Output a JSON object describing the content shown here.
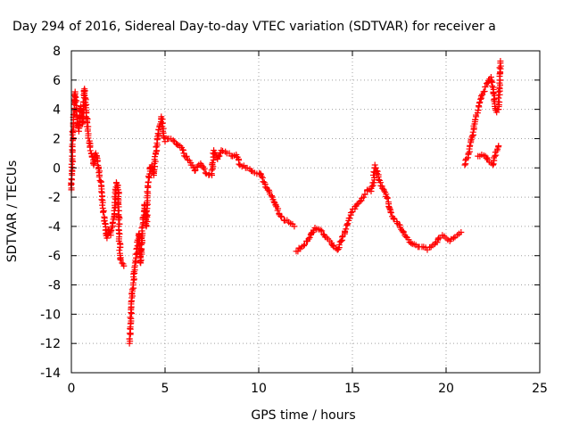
{
  "chart_data": {
    "type": "scatter",
    "title": "Day 294 of 2016, Sidereal Day-to-day VTEC variation (SDTVAR) for receiver a",
    "xlabel": "GPS time / hours",
    "ylabel": "SDTVAR / TECUs",
    "xlim": [
      0,
      25
    ],
    "ylim": [
      -14,
      8
    ],
    "xticks": [
      0,
      5,
      10,
      15,
      20,
      25
    ],
    "yticks": [
      -14,
      -12,
      -10,
      -8,
      -6,
      -4,
      -2,
      0,
      2,
      4,
      6,
      8
    ],
    "grid": true,
    "marker": "plus",
    "color": "#ff0000",
    "segments": [
      [
        [
          0.0,
          -1.5
        ],
        [
          0.05,
          0.5
        ],
        [
          0.1,
          3.0
        ],
        [
          0.2,
          5.2
        ],
        [
          0.3,
          3.5
        ],
        [
          0.4,
          2.5
        ],
        [
          0.5,
          4.2
        ],
        [
          0.6,
          3.0
        ],
        [
          0.7,
          5.4
        ],
        [
          0.8,
          3.8
        ],
        [
          0.9,
          2.2
        ],
        [
          1.0,
          1.5
        ],
        [
          1.1,
          0.8
        ],
        [
          1.2,
          0.2
        ],
        [
          1.3,
          1.0
        ],
        [
          1.4,
          0.5
        ],
        [
          1.5,
          -0.5
        ],
        [
          1.6,
          -1.2
        ],
        [
          1.7,
          -3.0
        ],
        [
          1.8,
          -3.8
        ],
        [
          1.9,
          -4.8
        ],
        [
          2.0,
          -4.2
        ],
        [
          2.1,
          -4.6
        ],
        [
          2.2,
          -3.8
        ],
        [
          2.3,
          -3.2
        ],
        [
          2.4,
          -1.0
        ],
        [
          2.5,
          -1.5
        ],
        [
          2.6,
          -6.2
        ],
        [
          2.7,
          -6.5
        ],
        [
          2.8,
          -6.7
        ]
      ],
      [
        [
          3.1,
          -12.0
        ],
        [
          3.2,
          -9.5
        ],
        [
          3.3,
          -8.0
        ],
        [
          3.4,
          -6.5
        ],
        [
          3.5,
          -5.5
        ],
        [
          3.6,
          -4.5
        ],
        [
          3.7,
          -6.5
        ],
        [
          3.8,
          -4.0
        ],
        [
          3.9,
          -2.5
        ],
        [
          4.0,
          -4.0
        ],
        [
          4.1,
          -1.0
        ],
        [
          4.2,
          0.0
        ],
        [
          4.3,
          0.2
        ],
        [
          4.4,
          -0.5
        ],
        [
          4.5,
          1.0
        ],
        [
          4.6,
          2.0
        ],
        [
          4.7,
          2.8
        ],
        [
          4.8,
          3.5
        ],
        [
          5.0,
          1.8
        ],
        [
          5.2,
          2.0
        ],
        [
          5.5,
          1.8
        ],
        [
          5.8,
          1.5
        ],
        [
          6.0,
          1.0
        ],
        [
          6.3,
          0.5
        ],
        [
          6.6,
          -0.2
        ],
        [
          6.8,
          0.2
        ]
      ],
      [
        [
          6.9,
          0.3
        ],
        [
          7.2,
          -0.4
        ],
        [
          7.5,
          -0.5
        ],
        [
          7.6,
          1.2
        ],
        [
          7.8,
          0.6
        ],
        [
          8.0,
          1.2
        ],
        [
          8.3,
          1.0
        ],
        [
          8.6,
          0.8
        ],
        [
          8.8,
          0.9
        ],
        [
          9.0,
          0.2
        ],
        [
          9.3,
          0.0
        ],
        [
          9.6,
          -0.2
        ],
        [
          9.9,
          -0.4
        ],
        [
          10.1,
          -0.4
        ],
        [
          10.3,
          -1.0
        ],
        [
          10.6,
          -1.8
        ],
        [
          10.9,
          -2.5
        ],
        [
          11.1,
          -3.2
        ],
        [
          11.4,
          -3.6
        ],
        [
          11.7,
          -3.8
        ],
        [
          11.9,
          -4.0
        ]
      ],
      [
        [
          12.0,
          -5.7
        ],
        [
          12.3,
          -5.4
        ],
        [
          12.6,
          -5.0
        ],
        [
          12.8,
          -4.5
        ],
        [
          13.0,
          -4.1
        ],
        [
          13.2,
          -4.2
        ],
        [
          13.5,
          -4.6
        ],
        [
          13.8,
          -5.0
        ],
        [
          14.0,
          -5.4
        ],
        [
          14.2,
          -5.6
        ],
        [
          14.4,
          -5.0
        ],
        [
          14.6,
          -4.4
        ],
        [
          14.8,
          -3.6
        ],
        [
          15.0,
          -3.0
        ],
        [
          15.2,
          -2.6
        ],
        [
          15.4,
          -2.3
        ],
        [
          15.6,
          -2.0
        ],
        [
          15.8,
          -1.5
        ],
        [
          16.0,
          -1.6
        ],
        [
          16.1,
          -1.2
        ],
        [
          16.2,
          0.2
        ],
        [
          16.3,
          -0.2
        ],
        [
          16.4,
          -0.8
        ],
        [
          16.5,
          -1.0
        ],
        [
          16.6,
          -1.4
        ],
        [
          16.8,
          -1.8
        ],
        [
          17.0,
          -2.8
        ],
        [
          17.2,
          -3.5
        ],
        [
          17.4,
          -3.8
        ],
        [
          17.6,
          -4.2
        ],
        [
          17.8,
          -4.6
        ],
        [
          18.0,
          -4.9
        ],
        [
          18.2,
          -5.2
        ],
        [
          18.5,
          -5.4
        ],
        [
          18.8,
          -5.4
        ],
        [
          19.0,
          -5.6
        ],
        [
          19.2,
          -5.4
        ],
        [
          19.4,
          -5.2
        ],
        [
          19.6,
          -4.8
        ],
        [
          19.8,
          -4.6
        ],
        [
          20.0,
          -4.8
        ],
        [
          20.2,
          -5.0
        ],
        [
          20.4,
          -4.8
        ],
        [
          20.6,
          -4.6
        ],
        [
          20.8,
          -4.4
        ]
      ],
      [
        [
          21.0,
          0.2
        ],
        [
          21.2,
          1.0
        ],
        [
          21.4,
          2.2
        ],
        [
          21.6,
          3.5
        ],
        [
          21.8,
          4.5
        ],
        [
          22.0,
          5.2
        ],
        [
          22.2,
          5.8
        ],
        [
          22.4,
          6.2
        ],
        [
          22.5,
          5.5
        ],
        [
          22.6,
          4.2
        ],
        [
          22.7,
          3.8
        ],
        [
          22.8,
          4.0
        ],
        [
          22.85,
          5.8
        ],
        [
          22.9,
          7.3
        ]
      ],
      [
        [
          21.7,
          0.8
        ],
        [
          21.9,
          0.9
        ],
        [
          22.1,
          0.8
        ],
        [
          22.3,
          0.4
        ],
        [
          22.5,
          0.2
        ],
        [
          22.6,
          0.8
        ],
        [
          22.8,
          1.5
        ]
      ]
    ]
  }
}
